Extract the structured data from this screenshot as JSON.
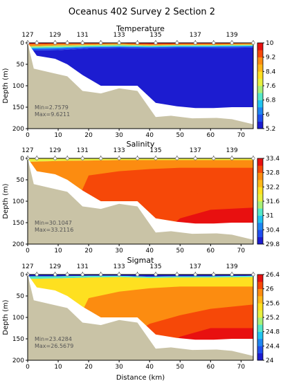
{
  "figure": {
    "title": "Oceanus 402 Survey 2 Section 2",
    "xlabel": "Distance (km)",
    "ylabel": "Depth (m)"
  },
  "colors": {
    "seafloor": "#c9c3a6",
    "no_data": "#ffffff",
    "colormap": [
      "#1c1cd0",
      "#1e4ef0",
      "#1e86f2",
      "#22c4f0",
      "#55e8c8",
      "#a8f078",
      "#e8f040",
      "#fee020",
      "#fdb818",
      "#fc8c10",
      "#f64808",
      "#e81010"
    ]
  },
  "chart_data": [
    {
      "type": "heatmap",
      "title": "Temperature",
      "xlim": [
        0,
        74
      ],
      "ylim": [
        200,
        0
      ],
      "x_ticks": [
        0,
        10,
        20,
        30,
        40,
        50,
        60,
        70
      ],
      "y_ticks": [
        0,
        50,
        100,
        150,
        200
      ],
      "stations": [
        "127",
        "129",
        "131",
        "133",
        "135",
        "137",
        "139"
      ],
      "station_x": [
        0,
        9,
        18,
        30,
        42,
        55,
        67
      ],
      "station_marks_x": [
        0,
        3,
        9,
        13,
        18,
        24,
        30,
        36,
        42,
        49,
        55,
        61,
        67,
        74
      ],
      "colorbar_ticks": [
        10,
        9.2,
        8.4,
        7.6,
        6.8,
        6,
        5.2
      ],
      "vmin": 5.2,
      "vmax": 10,
      "min_label": "Min=2.7579",
      "max_label": "Max=9.6211",
      "bands": [
        {
          "value": 9.8,
          "top": [
            0,
            0,
            0,
            0,
            0,
            0,
            0,
            0
          ],
          "bottom": [
            3,
            2,
            2,
            1,
            3,
            2,
            2,
            1
          ]
        },
        {
          "value": 8.8,
          "top": [
            3,
            2,
            2,
            1,
            3,
            2,
            2,
            1
          ],
          "bottom": [
            8,
            6,
            5,
            4,
            6,
            5,
            5,
            4
          ]
        },
        {
          "value": 7.6,
          "top": [
            8,
            6,
            5,
            4,
            6,
            5,
            5,
            4
          ],
          "bottom": [
            11,
            10,
            8,
            7,
            8,
            7,
            7,
            6
          ]
        },
        {
          "value": 6.6,
          "top": [
            11,
            10,
            8,
            7,
            8,
            7,
            7,
            6
          ],
          "bottom": [
            14,
            13,
            10,
            9,
            10,
            9,
            9,
            8
          ]
        },
        {
          "value": 5.7,
          "top": [
            14,
            13,
            10,
            9,
            10,
            9,
            9,
            8
          ],
          "bottom": [
            18,
            17,
            13,
            12,
            13,
            12,
            12,
            11
          ]
        },
        {
          "value": 5.2,
          "top": [
            18,
            17,
            13,
            12,
            13,
            12,
            12,
            11
          ],
          "bottom": [
            200,
            200,
            200,
            200,
            200,
            200,
            200,
            200
          ]
        }
      ]
    },
    {
      "type": "heatmap",
      "title": "Salinity",
      "xlim": [
        0,
        74
      ],
      "ylim": [
        200,
        0
      ],
      "x_ticks": [
        0,
        10,
        20,
        30,
        40,
        50,
        60,
        70
      ],
      "y_ticks": [
        0,
        50,
        100,
        150,
        200
      ],
      "stations": [
        "127",
        "129",
        "131",
        "133",
        "135",
        "137",
        "139"
      ],
      "station_x": [
        0,
        9,
        18,
        30,
        42,
        55,
        67
      ],
      "station_marks_x": [
        0,
        3,
        9,
        13,
        18,
        24,
        30,
        36,
        42,
        49,
        55,
        61,
        67,
        74
      ],
      "colorbar_ticks": [
        33.4,
        32.8,
        32.2,
        31.6,
        31,
        30.4,
        29.8
      ],
      "vmin": 29.8,
      "vmax": 33.4,
      "min_label": "Min=30.1047",
      "max_label": "Max=33.2116",
      "bands": [
        {
          "value": 31.9,
          "top": [
            0,
            0,
            0,
            0,
            0,
            0,
            0,
            0
          ],
          "bottom": [
            8,
            6,
            5,
            4,
            4,
            4,
            4,
            4
          ]
        },
        {
          "value": 32.5,
          "top": [
            8,
            6,
            5,
            4,
            4,
            4,
            4,
            4
          ],
          "bottom": [
            200,
            200,
            200,
            200,
            200,
            200,
            200,
            200
          ]
        },
        {
          "value": 32.85,
          "top": [
            200,
            200,
            40,
            30,
            25,
            22,
            22,
            22
          ],
          "bottom": [
            200,
            200,
            200,
            200,
            200,
            200,
            200,
            200
          ]
        },
        {
          "value": 33.05,
          "top": [
            200,
            200,
            200,
            150,
            110,
            90,
            75,
            60
          ],
          "bottom": [
            200,
            200,
            200,
            200,
            200,
            200,
            200,
            200
          ]
        },
        {
          "value": 33.25,
          "top": [
            200,
            200,
            200,
            200,
            200,
            140,
            120,
            115
          ],
          "bottom": [
            200,
            200,
            200,
            200,
            200,
            200,
            200,
            200
          ]
        }
      ]
    },
    {
      "type": "heatmap",
      "title": "Sigmat",
      "xlim": [
        0,
        74
      ],
      "ylim": [
        200,
        0
      ],
      "x_ticks": [
        0,
        10,
        20,
        30,
        40,
        50,
        60,
        70
      ],
      "y_ticks": [
        0,
        50,
        100,
        150,
        200
      ],
      "stations": [
        "127",
        "129",
        "131",
        "133",
        "135",
        "137",
        "139"
      ],
      "station_x": [
        0,
        9,
        18,
        30,
        42,
        55,
        67
      ],
      "station_marks_x": [
        0,
        3,
        9,
        13,
        18,
        24,
        30,
        36,
        42,
        49,
        55,
        61,
        67,
        74
      ],
      "colorbar_ticks": [
        26.4,
        26,
        25.6,
        25.2,
        24.8,
        24.4,
        24
      ],
      "vmin": 24,
      "vmax": 26.4,
      "min_label": "Min=23.4284",
      "max_label": "Max=26.5679",
      "bands": [
        {
          "value": 24.1,
          "top": [
            0,
            0,
            0,
            0,
            0,
            0,
            0,
            0
          ],
          "bottom": [
            4,
            4,
            3,
            3,
            5,
            4,
            4,
            3
          ]
        },
        {
          "value": 24.9,
          "top": [
            4,
            4,
            3,
            3,
            5,
            4,
            4,
            3
          ],
          "bottom": [
            10,
            9,
            7,
            6,
            8,
            7,
            7,
            6
          ]
        },
        {
          "value": 25.5,
          "top": [
            10,
            9,
            7,
            6,
            8,
            7,
            7,
            6
          ],
          "bottom": [
            200,
            200,
            200,
            200,
            200,
            200,
            200,
            200
          ]
        },
        {
          "value": 25.85,
          "top": [
            200,
            200,
            55,
            40,
            32,
            28,
            28,
            28
          ],
          "bottom": [
            200,
            200,
            200,
            200,
            200,
            200,
            200,
            200
          ]
        },
        {
          "value": 26.1,
          "top": [
            200,
            200,
            200,
            160,
            115,
            95,
            80,
            70
          ],
          "bottom": [
            200,
            200,
            200,
            200,
            200,
            200,
            200,
            200
          ]
        },
        {
          "value": 26.35,
          "top": [
            200,
            200,
            200,
            200,
            200,
            145,
            125,
            125
          ],
          "bottom": [
            200,
            200,
            200,
            200,
            200,
            200,
            200,
            200
          ]
        }
      ]
    }
  ],
  "section_shape": {
    "band_x": [
      0,
      10,
      20,
      30,
      40,
      50,
      60,
      74
    ],
    "seafloor_x": [
      0,
      2,
      8,
      13,
      18,
      24,
      30,
      36,
      42,
      47,
      54,
      62,
      67,
      74
    ],
    "seafloor_depth": [
      0,
      60,
      70,
      78,
      112,
      118,
      106,
      112,
      173,
      170,
      176,
      175,
      178,
      190
    ],
    "nodata_x": [
      1.5,
      3,
      9,
      13,
      18,
      24,
      30,
      36,
      42,
      49,
      55,
      61,
      67,
      73
    ],
    "nodata_depth": [
      15,
      30,
      37,
      50,
      75,
      100,
      100,
      100,
      140,
      148,
      152,
      152,
      150,
      150
    ]
  }
}
